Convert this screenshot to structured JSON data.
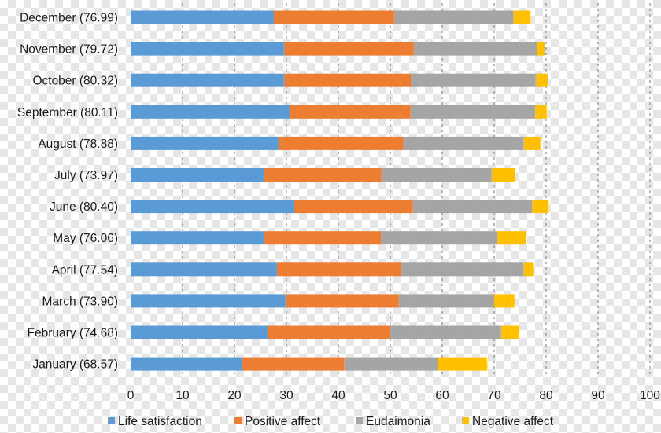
{
  "chart_data": {
    "type": "bar",
    "orientation": "horizontal",
    "stacked": true,
    "categories": [
      "December (76.99)",
      "November (79.72)",
      "October (80.32)",
      "September (80.11)",
      "August (78.88)",
      "July (73.97)",
      "June (80.40)",
      "May (76.06)",
      "April (77.54)",
      "March (73.90)",
      "February (74.68)",
      "January (68.57)"
    ],
    "series": [
      {
        "name": "Life satisfaction",
        "color": "#5b9bd5",
        "values": [
          27.5,
          29.5,
          29.5,
          30.6,
          28.4,
          25.6,
          31.5,
          25.6,
          28.1,
          29.8,
          26.3,
          21.5
        ]
      },
      {
        "name": "Positive affect",
        "color": "#ed7d31",
        "values": [
          23.2,
          25.0,
          24.5,
          23.2,
          24.1,
          22.7,
          22.8,
          22.6,
          24.0,
          21.8,
          23.7,
          19.6
        ]
      },
      {
        "name": "Eudaimonia",
        "color": "#a5a5a5",
        "values": [
          23.0,
          23.7,
          24.0,
          24.1,
          23.1,
          21.2,
          23.0,
          22.4,
          23.5,
          18.4,
          21.3,
          18.0
        ]
      },
      {
        "name": "Negative affect",
        "color": "#ffc000",
        "values": [
          3.3,
          1.5,
          2.3,
          2.2,
          3.3,
          4.5,
          3.1,
          5.5,
          1.9,
          3.9,
          3.4,
          9.5
        ]
      }
    ],
    "xlim": [
      0,
      100
    ],
    "xticks": [
      "0",
      "10",
      "20",
      "30",
      "40",
      "50",
      "60",
      "70",
      "80",
      "90",
      "100"
    ],
    "title": "",
    "xlabel": "",
    "ylabel": "",
    "grid": "vertical dashed",
    "legend": "bottom"
  }
}
